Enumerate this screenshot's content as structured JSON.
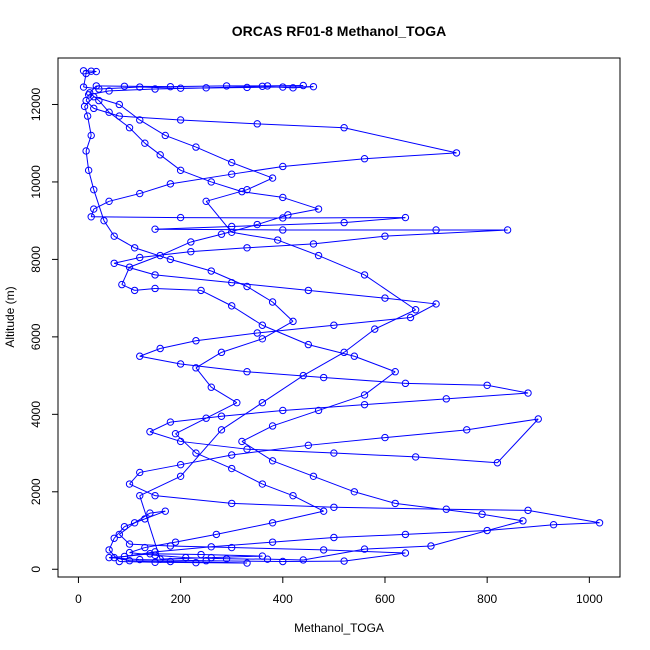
{
  "chart_data": {
    "type": "line",
    "title": "ORCAS RF01-8 Methanol_TOGA",
    "xlabel": "Methanol_TOGA",
    "ylabel": "Altitude (m)",
    "xlim": [
      -40,
      1060
    ],
    "ylim": [
      -200,
      13200
    ],
    "xticks": [
      "0",
      "200",
      "400",
      "600",
      "800",
      "1000"
    ],
    "yticks": [
      "0",
      "2000",
      "4000",
      "6000",
      "8000",
      "10000",
      "12000"
    ],
    "grid": false,
    "legend": "none",
    "series": [
      {
        "color": "#0000ff",
        "marker": "open-circle",
        "points": [
          [
            10,
            12870
          ],
          [
            25,
            12860
          ],
          [
            35,
            12850
          ],
          [
            15,
            12800
          ],
          [
            10,
            12450
          ],
          [
            40,
            12400
          ],
          [
            120,
            12450
          ],
          [
            200,
            12420
          ],
          [
            330,
            12440
          ],
          [
            400,
            12450
          ],
          [
            460,
            12460
          ],
          [
            420,
            12430
          ],
          [
            360,
            12470
          ],
          [
            250,
            12430
          ],
          [
            150,
            12400
          ],
          [
            60,
            12350
          ],
          [
            20,
            12250
          ],
          [
            15,
            12100
          ],
          [
            30,
            11900
          ],
          [
            80,
            11700
          ],
          [
            200,
            11600
          ],
          [
            350,
            11500
          ],
          [
            520,
            11400
          ],
          [
            740,
            10750
          ],
          [
            560,
            10600
          ],
          [
            400,
            10400
          ],
          [
            300,
            10200
          ],
          [
            180,
            9950
          ],
          [
            120,
            9700
          ],
          [
            60,
            9500
          ],
          [
            30,
            9300
          ],
          [
            25,
            9100
          ],
          [
            200,
            9080
          ],
          [
            400,
            9070
          ],
          [
            640,
            9080
          ],
          [
            520,
            8950
          ],
          [
            300,
            8850
          ],
          [
            150,
            8780
          ],
          [
            400,
            8760
          ],
          [
            700,
            8760
          ],
          [
            840,
            8760
          ],
          [
            600,
            8600
          ],
          [
            460,
            8400
          ],
          [
            330,
            8300
          ],
          [
            220,
            8200
          ],
          [
            120,
            8050
          ],
          [
            70,
            7900
          ],
          [
            150,
            7600
          ],
          [
            300,
            7400
          ],
          [
            450,
            7200
          ],
          [
            600,
            7000
          ],
          [
            700,
            6850
          ],
          [
            650,
            6500
          ],
          [
            500,
            6300
          ],
          [
            350,
            6100
          ],
          [
            230,
            5900
          ],
          [
            160,
            5700
          ],
          [
            120,
            5500
          ],
          [
            200,
            5300
          ],
          [
            330,
            5100
          ],
          [
            480,
            4950
          ],
          [
            640,
            4800
          ],
          [
            800,
            4750
          ],
          [
            880,
            4550
          ],
          [
            720,
            4400
          ],
          [
            560,
            4250
          ],
          [
            400,
            4100
          ],
          [
            280,
            3950
          ],
          [
            180,
            3800
          ],
          [
            140,
            3550
          ],
          [
            200,
            3300
          ],
          [
            330,
            3100
          ],
          [
            500,
            3000
          ],
          [
            660,
            2900
          ],
          [
            820,
            2750
          ],
          [
            900,
            3880
          ],
          [
            760,
            3600
          ],
          [
            600,
            3400
          ],
          [
            450,
            3200
          ],
          [
            300,
            2950
          ],
          [
            200,
            2700
          ],
          [
            120,
            2500
          ],
          [
            100,
            2200
          ],
          [
            150,
            1900
          ],
          [
            300,
            1700
          ],
          [
            500,
            1600
          ],
          [
            720,
            1550
          ],
          [
            880,
            1520
          ],
          [
            1020,
            1200
          ],
          [
            930,
            1150
          ],
          [
            800,
            1000
          ],
          [
            640,
            900
          ],
          [
            500,
            820
          ],
          [
            380,
            700
          ],
          [
            260,
            580
          ],
          [
            150,
            450
          ],
          [
            90,
            330
          ],
          [
            60,
            300
          ],
          [
            120,
            250
          ],
          [
            250,
            220
          ],
          [
            400,
            200
          ],
          [
            520,
            210
          ],
          [
            640,
            420
          ],
          [
            480,
            500
          ],
          [
            300,
            560
          ],
          [
            180,
            600
          ],
          [
            100,
            650
          ],
          [
            80,
            900
          ],
          [
            110,
            1200
          ],
          [
            140,
            1450
          ],
          [
            170,
            1500
          ],
          [
            130,
            1300
          ],
          [
            90,
            1100
          ],
          [
            70,
            800
          ],
          [
            60,
            500
          ],
          [
            80,
            200
          ],
          [
            150,
            180
          ],
          [
            230,
            170
          ],
          [
            330,
            160
          ],
          [
            180,
            200
          ],
          [
            100,
            220
          ],
          [
            70,
            300
          ],
          [
            140,
            400
          ],
          [
            240,
            380
          ],
          [
            360,
            340
          ],
          [
            260,
            300
          ],
          [
            160,
            260
          ],
          [
            120,
            1900
          ],
          [
            200,
            2400
          ],
          [
            280,
            3600
          ],
          [
            360,
            4300
          ],
          [
            440,
            5000
          ],
          [
            520,
            5600
          ],
          [
            580,
            6200
          ],
          [
            660,
            6700
          ],
          [
            560,
            7600
          ],
          [
            470,
            8100
          ],
          [
            390,
            8500
          ],
          [
            300,
            8700
          ],
          [
            250,
            9500
          ],
          [
            330,
            9800
          ],
          [
            380,
            10100
          ],
          [
            300,
            10500
          ],
          [
            230,
            10900
          ],
          [
            170,
            11200
          ],
          [
            120,
            11600
          ],
          [
            80,
            12000
          ],
          [
            30,
            12200
          ],
          [
            12,
            11950
          ],
          [
            18,
            11700
          ],
          [
            25,
            11200
          ],
          [
            15,
            10800
          ],
          [
            20,
            10300
          ],
          [
            30,
            9800
          ],
          [
            50,
            9000
          ],
          [
            70,
            8600
          ],
          [
            110,
            8300
          ],
          [
            180,
            8000
          ],
          [
            260,
            7700
          ],
          [
            330,
            7300
          ],
          [
            380,
            6900
          ],
          [
            420,
            6400
          ],
          [
            360,
            5950
          ],
          [
            280,
            5600
          ],
          [
            230,
            5200
          ],
          [
            260,
            4700
          ],
          [
            310,
            4300
          ],
          [
            250,
            3900
          ],
          [
            190,
            3500
          ],
          [
            230,
            3000
          ],
          [
            300,
            2600
          ],
          [
            360,
            2200
          ],
          [
            420,
            1900
          ],
          [
            480,
            1500
          ],
          [
            380,
            1200
          ],
          [
            270,
            900
          ],
          [
            190,
            700
          ],
          [
            130,
            560
          ],
          [
            100,
            430
          ],
          [
            150,
            360
          ],
          [
            210,
            300
          ],
          [
            290,
            270
          ],
          [
            370,
            260
          ],
          [
            440,
            240
          ],
          [
            560,
            520
          ],
          [
            690,
            600
          ],
          [
            870,
            1250
          ],
          [
            790,
            1420
          ],
          [
            620,
            1700
          ],
          [
            540,
            2000
          ],
          [
            460,
            2400
          ],
          [
            380,
            2800
          ],
          [
            320,
            3300
          ],
          [
            380,
            3700
          ],
          [
            470,
            4100
          ],
          [
            560,
            4500
          ],
          [
            620,
            5100
          ],
          [
            540,
            5500
          ],
          [
            450,
            5800
          ],
          [
            360,
            6300
          ],
          [
            300,
            6800
          ],
          [
            240,
            7200
          ],
          [
            150,
            7250
          ],
          [
            110,
            7200
          ],
          [
            85,
            7350
          ],
          [
            100,
            7800
          ],
          [
            160,
            8100
          ],
          [
            220,
            8450
          ],
          [
            280,
            8650
          ],
          [
            350,
            8900
          ],
          [
            410,
            9150
          ],
          [
            470,
            9300
          ],
          [
            400,
            9600
          ],
          [
            320,
            9750
          ],
          [
            260,
            10000
          ],
          [
            200,
            10300
          ],
          [
            160,
            10700
          ],
          [
            130,
            11000
          ],
          [
            100,
            11400
          ],
          [
            60,
            11800
          ],
          [
            40,
            12100
          ],
          [
            22,
            12300
          ],
          [
            35,
            12480
          ],
          [
            90,
            12470
          ],
          [
            180,
            12460
          ],
          [
            290,
            12480
          ],
          [
            370,
            12480
          ],
          [
            440,
            12490
          ]
        ]
      }
    ]
  }
}
